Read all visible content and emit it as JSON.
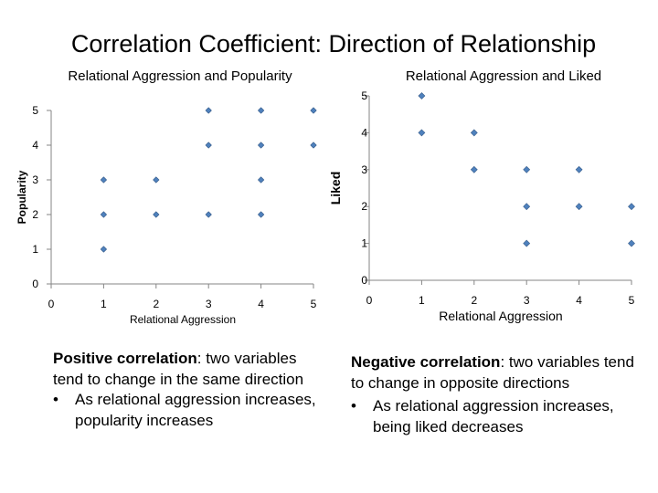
{
  "slide": {
    "title": "Correlation Coefficient: Direction of Relationship"
  },
  "chart_data": [
    {
      "type": "scatter",
      "title": "Relational Aggression and Popularity",
      "xlabel": "Relational Aggression",
      "ylabel": "Popularity",
      "xlim": [
        0,
        5
      ],
      "ylim": [
        0,
        5
      ],
      "xticks": [
        0,
        1,
        2,
        3,
        4,
        5
      ],
      "yticks": [
        0,
        1,
        2,
        3,
        4,
        5
      ],
      "grid": false,
      "marker_color": "#4f81bd",
      "points": [
        {
          "x": 1,
          "y": 1
        },
        {
          "x": 1,
          "y": 2
        },
        {
          "x": 1,
          "y": 3
        },
        {
          "x": 2,
          "y": 2
        },
        {
          "x": 2,
          "y": 3
        },
        {
          "x": 3,
          "y": 2
        },
        {
          "x": 3,
          "y": 4
        },
        {
          "x": 3,
          "y": 5
        },
        {
          "x": 4,
          "y": 2
        },
        {
          "x": 4,
          "y": 3
        },
        {
          "x": 4,
          "y": 4
        },
        {
          "x": 4,
          "y": 5
        },
        {
          "x": 5,
          "y": 4
        },
        {
          "x": 5,
          "y": 5
        }
      ]
    },
    {
      "type": "scatter",
      "title": "Relational Aggression and Liked",
      "xlabel": "Relational Aggression",
      "ylabel": "Liked",
      "xlim": [
        0,
        5
      ],
      "ylim": [
        0,
        5
      ],
      "xticks": [
        0,
        1,
        2,
        3,
        4,
        5
      ],
      "yticks": [
        0,
        1,
        2,
        3,
        4,
        5
      ],
      "grid": false,
      "marker_color": "#4f81bd",
      "points": [
        {
          "x": 1,
          "y": 5
        },
        {
          "x": 1,
          "y": 4
        },
        {
          "x": 2,
          "y": 4
        },
        {
          "x": 2,
          "y": 3
        },
        {
          "x": 3,
          "y": 3
        },
        {
          "x": 3,
          "y": 2
        },
        {
          "x": 3,
          "y": 1
        },
        {
          "x": 4,
          "y": 3
        },
        {
          "x": 4,
          "y": 2
        },
        {
          "x": 5,
          "y": 2
        },
        {
          "x": 5,
          "y": 1
        }
      ]
    }
  ],
  "captions": {
    "left": {
      "term": "Positive correlation",
      "definition": ": two variables tend to change in the same direction",
      "bullet": "•",
      "bullet_text": "As relational aggression increases, popularity increases"
    },
    "right": {
      "term": "Negative correlation",
      "definition": ": two variables tend to change in opposite directions",
      "bullet": "•",
      "bullet_text": "As relational aggression increases, being liked decreases"
    }
  }
}
